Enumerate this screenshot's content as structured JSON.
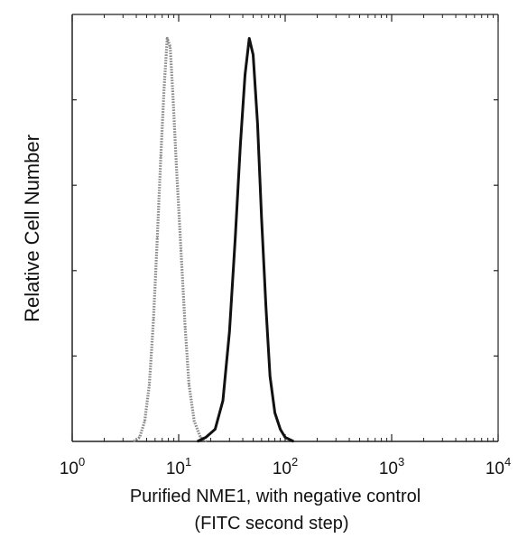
{
  "chart_data": {
    "type": "line",
    "title": "",
    "xlabel_lines": [
      "Purified NME1, with negative control",
      "(FITC second step)"
    ],
    "ylabel": "Relative Cell Number",
    "x_scale": "log",
    "xlim": [
      1,
      10000
    ],
    "ylim": [
      0,
      1.0
    ],
    "x_ticks": [
      {
        "base": "10",
        "exp": "0"
      },
      {
        "base": "10",
        "exp": "1"
      },
      {
        "base": "10",
        "exp": "2"
      },
      {
        "base": "10",
        "exp": "3"
      },
      {
        "base": "10",
        "exp": "4"
      }
    ],
    "grid": false,
    "series": [
      {
        "style": "dotted-gray",
        "color": "#8a8a8a",
        "points": [
          [
            3.8,
            0.0
          ],
          [
            4.3,
            0.01
          ],
          [
            4.8,
            0.05
          ],
          [
            5.3,
            0.14
          ],
          [
            5.8,
            0.3
          ],
          [
            6.3,
            0.5
          ],
          [
            6.8,
            0.7
          ],
          [
            7.3,
            0.87
          ],
          [
            7.8,
            0.99
          ],
          [
            8.3,
            0.97
          ],
          [
            8.8,
            0.86
          ],
          [
            9.5,
            0.68
          ],
          [
            10.5,
            0.47
          ],
          [
            11.5,
            0.28
          ],
          [
            12.5,
            0.14
          ],
          [
            14,
            0.05
          ],
          [
            16,
            0.01
          ],
          [
            18,
            0.0
          ]
        ]
      },
      {
        "style": "solid-black",
        "color": "#111111",
        "points": [
          [
            15,
            0.0
          ],
          [
            18,
            0.01
          ],
          [
            22,
            0.03
          ],
          [
            26,
            0.1
          ],
          [
            30,
            0.27
          ],
          [
            34,
            0.5
          ],
          [
            38,
            0.73
          ],
          [
            42,
            0.9
          ],
          [
            46,
            0.99
          ],
          [
            50,
            0.95
          ],
          [
            55,
            0.78
          ],
          [
            60,
            0.55
          ],
          [
            66,
            0.33
          ],
          [
            72,
            0.16
          ],
          [
            80,
            0.07
          ],
          [
            90,
            0.03
          ],
          [
            100,
            0.01
          ],
          [
            120,
            0.0
          ]
        ]
      }
    ]
  }
}
